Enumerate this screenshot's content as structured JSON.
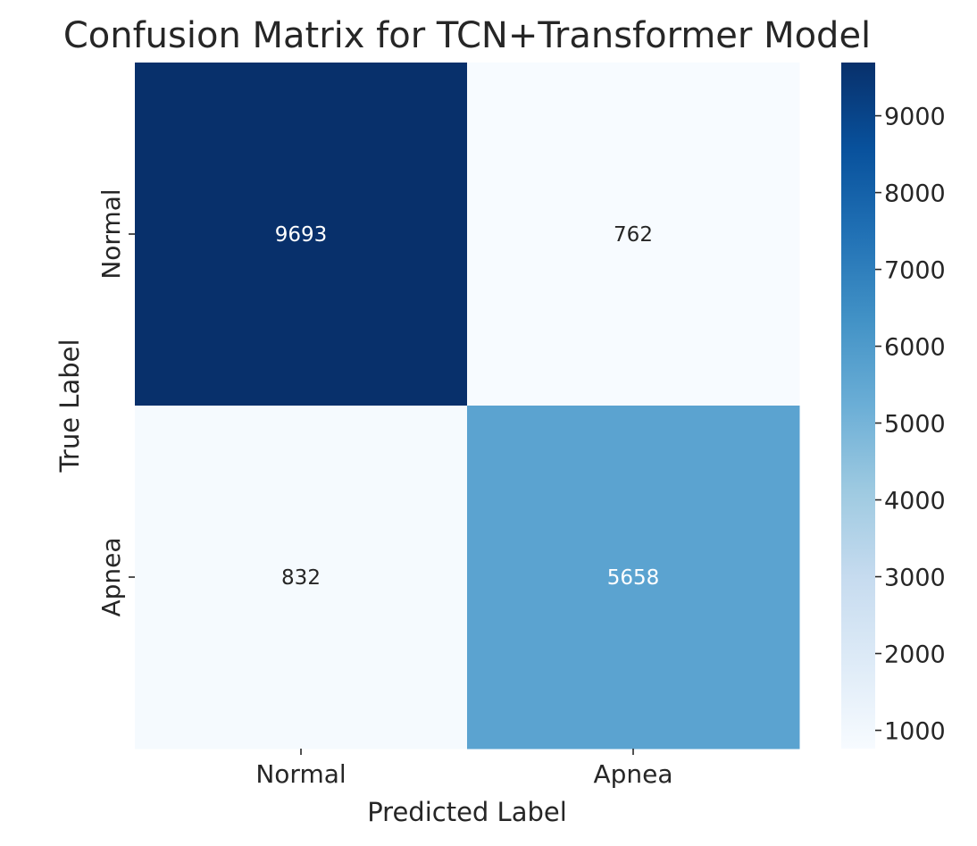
{
  "chart_data": {
    "type": "heatmap",
    "title": "Confusion Matrix for TCN+Transformer Model",
    "xlabel": "Predicted Label",
    "ylabel": "True Label",
    "x_categories": [
      "Normal",
      "Apnea"
    ],
    "y_categories": [
      "Normal",
      "Apnea"
    ],
    "values": [
      [
        9693,
        762
      ],
      [
        832,
        5658
      ]
    ],
    "colormap": "Blues",
    "colorbar": {
      "range": [
        762,
        9693
      ],
      "ticks": [
        "1000",
        "2000",
        "3000",
        "4000",
        "5000",
        "6000",
        "7000",
        "8000",
        "9000"
      ]
    },
    "grid": false,
    "legend": "colorbar-right"
  }
}
